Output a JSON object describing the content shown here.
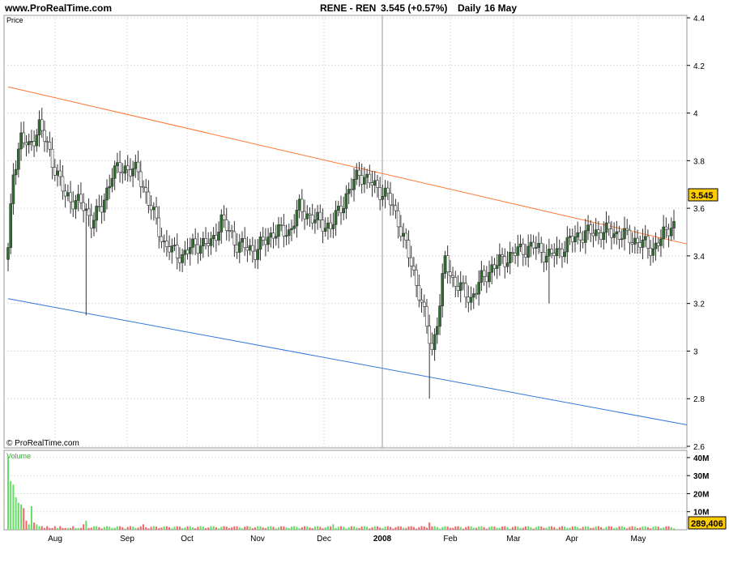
{
  "header": {
    "site": "www.ProRealTime.com",
    "instrument": "RENE - REN",
    "quote": "3.545 (+0.57%)",
    "timeframe": "Daily",
    "date": "16 May"
  },
  "price_panel": {
    "label": "Price",
    "watermark": "© ProRealTime.com",
    "last_price_tag": "3.545"
  },
  "volume_panel": {
    "label": "Volume",
    "last_volume_tag": "289,406"
  },
  "colors": {
    "up": "#33aa33",
    "down": "#cc3333",
    "up_fill": "#2e6e2e",
    "resistance": "#ff7733",
    "support": "#3377dd",
    "grid": "#dddddd",
    "tag_bg": "#ffcc00",
    "volume_up": "#66dd66",
    "volume_down": "#ee6666"
  },
  "chart_data": {
    "type": "candlestick",
    "period": "Daily",
    "price_axis": {
      "min": 2.6,
      "max": 4.4,
      "ticks": [
        2.6,
        2.8,
        3,
        3.2,
        3.4,
        3.6,
        3.8,
        4,
        4.2,
        4.4
      ]
    },
    "volume_axis": {
      "ticks": [
        "10M",
        "20M",
        "30M",
        "40M"
      ]
    },
    "x_labels": [
      "Aug",
      "Sep",
      "Oct",
      "Nov",
      "Dec",
      "2008",
      "Feb",
      "Mar",
      "Apr",
      "May"
    ],
    "trendlines": [
      {
        "name": "resistance",
        "from": {
          "date": "Jul",
          "value": 4.11
        },
        "to": {
          "date": "16 May",
          "value": 3.45
        }
      },
      {
        "name": "support",
        "from": {
          "date": "Jul",
          "value": 3.22
        },
        "to": {
          "date": "16 May",
          "value": 2.69
        }
      }
    ],
    "anchors": [
      {
        "bar": 0,
        "close": 3.42
      },
      {
        "bar": 2,
        "close": 3.75
      },
      {
        "bar": 5,
        "close": 3.9
      },
      {
        "bar": 8,
        "close": 3.85
      },
      {
        "bar": 12,
        "close": 3.95
      },
      {
        "bar": 17,
        "close": 3.8
      },
      {
        "bar": 22,
        "close": 3.65
      },
      {
        "bar": 28,
        "close": 3.62
      },
      {
        "bar": 32,
        "close": 3.55
      },
      {
        "bar": 36,
        "close": 3.6
      },
      {
        "bar": 40,
        "close": 3.75
      },
      {
        "bar": 45,
        "close": 3.77
      },
      {
        "bar": 50,
        "close": 3.75
      },
      {
        "bar": 55,
        "close": 3.6
      },
      {
        "bar": 60,
        "close": 3.45
      },
      {
        "bar": 63,
        "close": 3.42
      },
      {
        "bar": 67,
        "close": 3.4
      },
      {
        "bar": 72,
        "close": 3.45
      },
      {
        "bar": 78,
        "close": 3.45
      },
      {
        "bar": 82,
        "close": 3.55
      },
      {
        "bar": 88,
        "close": 3.45
      },
      {
        "bar": 95,
        "close": 3.42
      },
      {
        "bar": 102,
        "close": 3.5
      },
      {
        "bar": 108,
        "close": 3.5
      },
      {
        "bar": 112,
        "close": 3.6
      },
      {
        "bar": 118,
        "close": 3.55
      },
      {
        "bar": 124,
        "close": 3.52
      },
      {
        "bar": 130,
        "close": 3.65
      },
      {
        "bar": 135,
        "close": 3.75
      },
      {
        "bar": 140,
        "close": 3.7
      },
      {
        "bar": 146,
        "close": 3.65
      },
      {
        "bar": 150,
        "close": 3.55
      },
      {
        "bar": 154,
        "close": 3.4
      },
      {
        "bar": 158,
        "close": 3.25
      },
      {
        "bar": 161,
        "close": 3.1
      },
      {
        "bar": 163,
        "close": 3.0
      },
      {
        "bar": 166,
        "close": 3.2
      },
      {
        "bar": 168,
        "close": 3.38
      },
      {
        "bar": 171,
        "close": 3.3
      },
      {
        "bar": 175,
        "close": 3.25
      },
      {
        "bar": 178,
        "close": 3.22
      },
      {
        "bar": 182,
        "close": 3.3
      },
      {
        "bar": 186,
        "close": 3.35
      },
      {
        "bar": 190,
        "close": 3.38
      },
      {
        "bar": 196,
        "close": 3.42
      },
      {
        "bar": 202,
        "close": 3.44
      },
      {
        "bar": 208,
        "close": 3.4
      },
      {
        "bar": 212,
        "close": 3.42
      },
      {
        "bar": 218,
        "close": 3.48
      },
      {
        "bar": 225,
        "close": 3.5
      },
      {
        "bar": 232,
        "close": 3.5
      },
      {
        "bar": 238,
        "close": 3.48
      },
      {
        "bar": 244,
        "close": 3.45
      },
      {
        "bar": 248,
        "close": 3.43
      },
      {
        "bar": 251,
        "close": 3.47
      },
      {
        "bar": 254,
        "close": 3.52
      },
      {
        "bar": 256,
        "close": 3.545
      }
    ],
    "spikes": [
      {
        "bar": 30,
        "low": 3.15
      },
      {
        "bar": 162,
        "low": 2.8
      },
      {
        "bar": 208,
        "low": 3.2
      }
    ],
    "volume_series": [
      41,
      27,
      25,
      18,
      15,
      14,
      12,
      5,
      3,
      13,
      4,
      3,
      2,
      2,
      1,
      2,
      1,
      1,
      2,
      1,
      2,
      1,
      1,
      1,
      1,
      2,
      1,
      1,
      1,
      3,
      2,
      1
    ]
  }
}
